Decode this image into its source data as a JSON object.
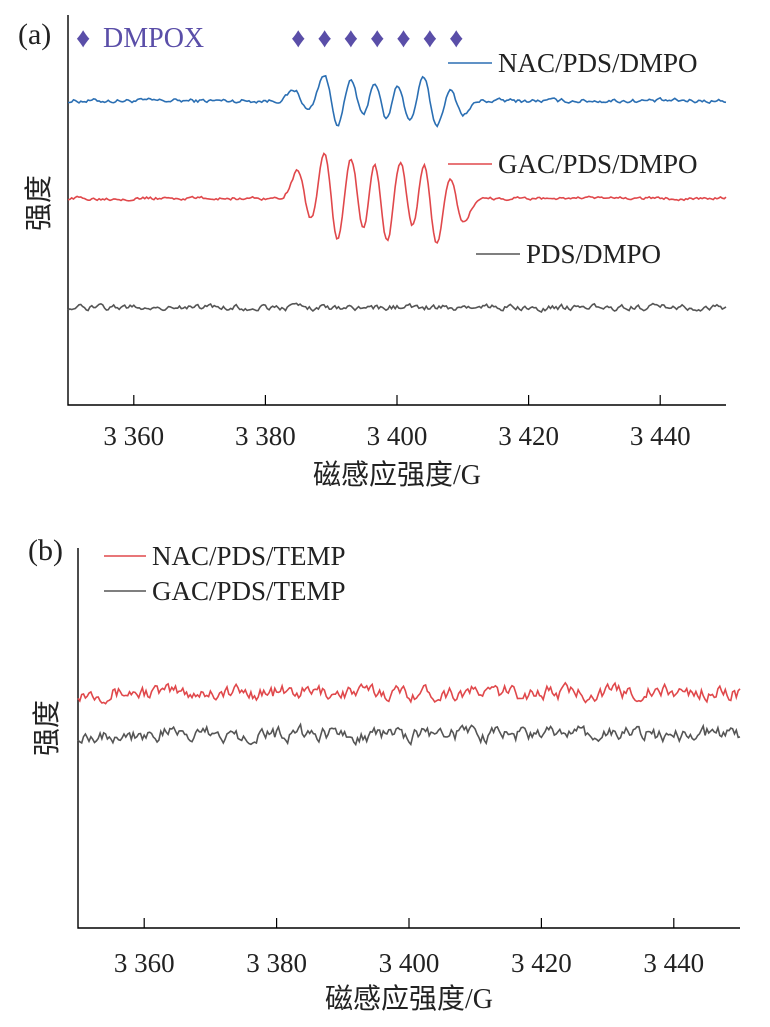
{
  "chart_data": [
    {
      "panel": "(a)",
      "type": "line",
      "xlabel": "磁感应强度/G",
      "ylabel": "强度",
      "xlim": [
        3350,
        3450
      ],
      "xticks": [
        "3 360",
        "3 380",
        "3 400",
        "3 420",
        "3 440"
      ],
      "xtick_values": [
        3360,
        3380,
        3400,
        3420,
        3440
      ],
      "annotation": {
        "label": "DMPOX",
        "symbol": "♦",
        "peak_x": [
          3385,
          3389,
          3393,
          3397,
          3401,
          3405,
          3409
        ]
      },
      "series": [
        {
          "name": "NAC/PDS/DMPO",
          "color": "#2b6fb3",
          "offset": 0.78,
          "amplitude": 0.07,
          "noise": 0.005,
          "peaks": [
            [
              3385.5,
              0.4
            ],
            [
              3390,
              1.0
            ],
            [
              3394,
              0.9
            ],
            [
              3397.5,
              1.0
            ],
            [
              3401,
              0.9
            ],
            [
              3405,
              1.0
            ],
            [
              3409,
              0.5
            ]
          ]
        },
        {
          "name": "GAC/PDS/DMPO",
          "color": "#e0484b",
          "offset": 0.53,
          "amplitude": 0.13,
          "noise": 0.004,
          "peaks": [
            [
              3386,
              0.55
            ],
            [
              3390,
              1.0
            ],
            [
              3394,
              0.95
            ],
            [
              3397.5,
              1.0
            ],
            [
              3401.5,
              0.9
            ],
            [
              3405,
              1.0
            ],
            [
              3409,
              0.5
            ]
          ]
        },
        {
          "name": "PDS/DMPO",
          "color": "#555555",
          "offset": 0.25,
          "amplitude": 0.0,
          "noise": 0.007,
          "peaks": []
        }
      ]
    },
    {
      "panel": "(b)",
      "type": "line",
      "xlabel": "磁感应强度/G",
      "ylabel": "强度",
      "xlim": [
        3350,
        3450
      ],
      "xticks": [
        "3 360",
        "3 380",
        "3 400",
        "3 420",
        "3 440"
      ],
      "xtick_values": [
        3360,
        3380,
        3400,
        3420,
        3440
      ],
      "series": [
        {
          "name": "NAC/PDS/TEMP",
          "color": "#e0484b",
          "offset": 0.62,
          "amplitude": 0.0,
          "noise": 0.018,
          "peaks": []
        },
        {
          "name": "GAC/PDS/TEMP",
          "color": "#555555",
          "offset": 0.51,
          "amplitude": 0.0,
          "noise": 0.018,
          "peaks": []
        }
      ]
    }
  ]
}
